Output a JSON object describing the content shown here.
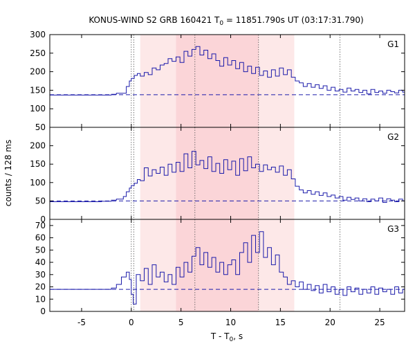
{
  "chart_data": {
    "type": "line",
    "title": {
      "main": "KONUS-WIND S2 GRB 160421 T",
      "sub": "0",
      "rest": " = 11851.790s UT (03:17:31.790)"
    },
    "xlabel": {
      "main": "T - T",
      "sub": "0",
      "rest": ", s"
    },
    "ylabel": "counts / 128 ms",
    "xlim": [
      -8.2,
      27.5
    ],
    "xticks": [
      "-5",
      "0",
      "5",
      "10",
      "15",
      "20",
      "25"
    ],
    "xtick_values": [
      -5,
      0,
      5,
      10,
      15,
      20,
      25
    ],
    "highlight_light": [
      0.9,
      16.4
    ],
    "highlight_dark": [
      4.5,
      12.8
    ],
    "vlines": [
      0.0,
      0.25,
      6.4,
      12.8,
      21.0
    ],
    "line_color": "#1a1aaa",
    "highlight_light_color": "#fde8e8",
    "highlight_dark_color": "#fbd5d8",
    "panels": [
      {
        "label": "G1",
        "ylim": [
          50,
          300
        ],
        "yticks": [
          "50",
          "100",
          "150",
          "200",
          "250",
          "300"
        ],
        "ytick_values": [
          50,
          100,
          150,
          200,
          250,
          300
        ],
        "background": 138,
        "series": [
          [
            -8.2,
            137
          ],
          [
            -3.0,
            137
          ],
          [
            -2.0,
            139
          ],
          [
            -1.5,
            142
          ],
          [
            -0.8,
            142
          ],
          [
            -0.5,
            160
          ],
          [
            -0.2,
            175
          ],
          [
            0.0,
            182
          ],
          [
            0.3,
            190
          ],
          [
            0.6,
            195
          ],
          [
            0.9,
            188
          ],
          [
            1.3,
            198
          ],
          [
            1.7,
            192
          ],
          [
            2.1,
            210
          ],
          [
            2.5,
            205
          ],
          [
            2.9,
            218
          ],
          [
            3.3,
            222
          ],
          [
            3.7,
            235
          ],
          [
            4.1,
            228
          ],
          [
            4.5,
            240
          ],
          [
            4.9,
            225
          ],
          [
            5.3,
            255
          ],
          [
            5.7,
            242
          ],
          [
            6.1,
            260
          ],
          [
            6.5,
            268
          ],
          [
            6.9,
            245
          ],
          [
            7.3,
            258
          ],
          [
            7.7,
            235
          ],
          [
            8.1,
            248
          ],
          [
            8.5,
            230
          ],
          [
            8.9,
            215
          ],
          [
            9.3,
            238
          ],
          [
            9.7,
            218
          ],
          [
            10.1,
            230
          ],
          [
            10.5,
            208
          ],
          [
            10.9,
            225
          ],
          [
            11.3,
            200
          ],
          [
            11.7,
            215
          ],
          [
            12.1,
            195
          ],
          [
            12.5,
            212
          ],
          [
            12.9,
            190
          ],
          [
            13.3,
            202
          ],
          [
            13.7,
            185
          ],
          [
            14.1,
            205
          ],
          [
            14.5,
            188
          ],
          [
            14.9,
            210
          ],
          [
            15.3,
            192
          ],
          [
            15.7,
            205
          ],
          [
            16.1,
            185
          ],
          [
            16.5,
            175
          ],
          [
            16.9,
            170
          ],
          [
            17.3,
            160
          ],
          [
            17.7,
            168
          ],
          [
            18.1,
            158
          ],
          [
            18.5,
            165
          ],
          [
            18.9,
            155
          ],
          [
            19.3,
            162
          ],
          [
            19.7,
            150
          ],
          [
            20.1,
            158
          ],
          [
            20.5,
            148
          ],
          [
            20.9,
            152
          ],
          [
            21.3,
            145
          ],
          [
            21.7,
            156
          ],
          [
            22.1,
            148
          ],
          [
            22.5,
            152
          ],
          [
            22.9,
            144
          ],
          [
            23.3,
            150
          ],
          [
            23.7,
            140
          ],
          [
            24.1,
            152
          ],
          [
            24.5,
            144
          ],
          [
            24.9,
            148
          ],
          [
            25.3,
            142
          ],
          [
            25.7,
            150
          ],
          [
            26.1,
            146
          ],
          [
            26.5,
            143
          ],
          [
            26.9,
            150
          ],
          [
            27.3,
            145
          ],
          [
            27.5,
            147
          ]
        ]
      },
      {
        "label": "G2",
        "ylim": [
          0,
          250
        ],
        "yticks": [
          "0",
          "50",
          "100",
          "150",
          "200"
        ],
        "ytick_values": [
          0,
          50,
          100,
          150,
          200
        ],
        "background": 50,
        "series": [
          [
            -8.2,
            48
          ],
          [
            -3.0,
            49
          ],
          [
            -2.0,
            52
          ],
          [
            -1.5,
            55
          ],
          [
            -0.8,
            62
          ],
          [
            -0.5,
            75
          ],
          [
            -0.2,
            85
          ],
          [
            0.0,
            92
          ],
          [
            0.3,
            98
          ],
          [
            0.6,
            108
          ],
          [
            0.9,
            105
          ],
          [
            1.3,
            140
          ],
          [
            1.7,
            118
          ],
          [
            2.1,
            135
          ],
          [
            2.5,
            125
          ],
          [
            2.9,
            142
          ],
          [
            3.3,
            120
          ],
          [
            3.7,
            150
          ],
          [
            4.1,
            128
          ],
          [
            4.5,
            155
          ],
          [
            4.9,
            130
          ],
          [
            5.3,
            178
          ],
          [
            5.7,
            140
          ],
          [
            6.1,
            185
          ],
          [
            6.5,
            148
          ],
          [
            6.9,
            160
          ],
          [
            7.3,
            138
          ],
          [
            7.7,
            170
          ],
          [
            8.1,
            130
          ],
          [
            8.5,
            152
          ],
          [
            8.9,
            125
          ],
          [
            9.3,
            162
          ],
          [
            9.7,
            135
          ],
          [
            10.1,
            158
          ],
          [
            10.5,
            120
          ],
          [
            10.9,
            165
          ],
          [
            11.3,
            132
          ],
          [
            11.7,
            170
          ],
          [
            12.1,
            140
          ],
          [
            12.5,
            150
          ],
          [
            12.9,
            130
          ],
          [
            13.3,
            148
          ],
          [
            13.7,
            135
          ],
          [
            14.1,
            142
          ],
          [
            14.5,
            128
          ],
          [
            14.9,
            145
          ],
          [
            15.3,
            120
          ],
          [
            15.7,
            135
          ],
          [
            16.1,
            110
          ],
          [
            16.5,
            90
          ],
          [
            16.9,
            80
          ],
          [
            17.3,
            72
          ],
          [
            17.7,
            78
          ],
          [
            18.1,
            68
          ],
          [
            18.5,
            75
          ],
          [
            18.9,
            65
          ],
          [
            19.3,
            72
          ],
          [
            19.7,
            62
          ],
          [
            20.1,
            66
          ],
          [
            20.5,
            58
          ],
          [
            20.9,
            62
          ],
          [
            21.3,
            52
          ],
          [
            21.7,
            60
          ],
          [
            22.1,
            54
          ],
          [
            22.5,
            58
          ],
          [
            22.9,
            50
          ],
          [
            23.3,
            56
          ],
          [
            23.7,
            48
          ],
          [
            24.1,
            55
          ],
          [
            24.5,
            50
          ],
          [
            24.9,
            58
          ],
          [
            25.3,
            46
          ],
          [
            25.7,
            56
          ],
          [
            26.1,
            52
          ],
          [
            26.5,
            48
          ],
          [
            26.9,
            55
          ],
          [
            27.3,
            50
          ],
          [
            27.5,
            52
          ]
        ]
      },
      {
        "label": "G3",
        "ylim": [
          0,
          75
        ],
        "yticks": [
          "0",
          "10",
          "20",
          "30",
          "40",
          "50",
          "60",
          "70"
        ],
        "ytick_values": [
          0,
          10,
          20,
          30,
          40,
          50,
          60,
          70
        ],
        "background": 18,
        "series": [
          [
            -8.2,
            18
          ],
          [
            -3.0,
            18
          ],
          [
            -2.0,
            19
          ],
          [
            -1.5,
            22
          ],
          [
            -1.0,
            28
          ],
          [
            -0.5,
            32
          ],
          [
            -0.2,
            26
          ],
          [
            0.0,
            14
          ],
          [
            0.2,
            6
          ],
          [
            0.5,
            30
          ],
          [
            0.9,
            25
          ],
          [
            1.3,
            35
          ],
          [
            1.7,
            22
          ],
          [
            2.1,
            38
          ],
          [
            2.5,
            28
          ],
          [
            2.9,
            32
          ],
          [
            3.3,
            24
          ],
          [
            3.7,
            30
          ],
          [
            4.1,
            22
          ],
          [
            4.5,
            36
          ],
          [
            4.9,
            28
          ],
          [
            5.3,
            40
          ],
          [
            5.7,
            32
          ],
          [
            6.1,
            45
          ],
          [
            6.5,
            52
          ],
          [
            6.9,
            38
          ],
          [
            7.3,
            48
          ],
          [
            7.7,
            36
          ],
          [
            8.1,
            44
          ],
          [
            8.5,
            32
          ],
          [
            8.9,
            40
          ],
          [
            9.3,
            30
          ],
          [
            9.7,
            38
          ],
          [
            10.1,
            42
          ],
          [
            10.5,
            30
          ],
          [
            10.9,
            48
          ],
          [
            11.3,
            56
          ],
          [
            11.7,
            40
          ],
          [
            12.1,
            62
          ],
          [
            12.5,
            48
          ],
          [
            12.9,
            65
          ],
          [
            13.3,
            44
          ],
          [
            13.7,
            52
          ],
          [
            14.1,
            38
          ],
          [
            14.5,
            46
          ],
          [
            14.9,
            32
          ],
          [
            15.3,
            28
          ],
          [
            15.7,
            22
          ],
          [
            16.1,
            25
          ],
          [
            16.5,
            20
          ],
          [
            16.9,
            24
          ],
          [
            17.3,
            18
          ],
          [
            17.7,
            22
          ],
          [
            18.1,
            17
          ],
          [
            18.5,
            21
          ],
          [
            18.9,
            15
          ],
          [
            19.3,
            22
          ],
          [
            19.7,
            16
          ],
          [
            20.1,
            20
          ],
          [
            20.5,
            14
          ],
          [
            20.9,
            18
          ],
          [
            21.3,
            13
          ],
          [
            21.7,
            20
          ],
          [
            22.1,
            16
          ],
          [
            22.5,
            19
          ],
          [
            22.9,
            14
          ],
          [
            23.3,
            18
          ],
          [
            23.7,
            15
          ],
          [
            24.1,
            20
          ],
          [
            24.5,
            14
          ],
          [
            24.9,
            19
          ],
          [
            25.3,
            16
          ],
          [
            25.7,
            18
          ],
          [
            26.1,
            14
          ],
          [
            26.5,
            20
          ],
          [
            26.9,
            15
          ],
          [
            27.3,
            18
          ],
          [
            27.5,
            17
          ]
        ]
      }
    ]
  }
}
